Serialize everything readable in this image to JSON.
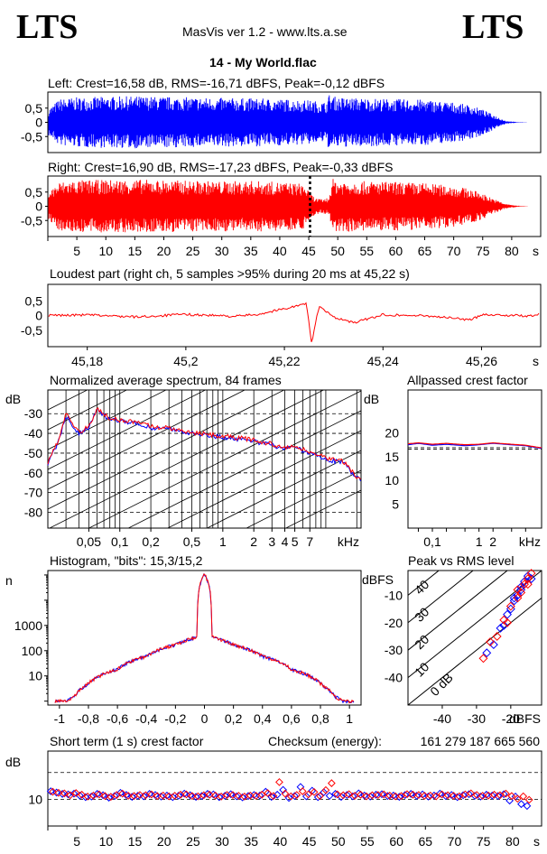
{
  "header": {
    "logo_left": "LTS",
    "logo_right": "LTS",
    "app_title": "MasVis ver 1.2 - www.lts.a.se",
    "track_title": "14 - My World.flac"
  },
  "colors": {
    "left": "#0000ff",
    "right": "#ff0000",
    "grid": "#000000"
  },
  "chart_data": [
    {
      "id": "left-waveform",
      "type": "area",
      "title": "Left: Crest=16,58 dB, RMS=-16,71 dBFS, Peak=-0,12 dBFS",
      "series": [
        {
          "name": "",
          "color": "#0000ff"
        }
      ],
      "x": [
        0,
        2,
        5,
        10,
        15,
        20,
        25,
        30,
        35,
        40,
        45,
        48,
        48.5,
        50,
        55,
        60,
        65,
        70,
        73,
        75,
        77,
        79,
        81,
        83
      ],
      "amplitude": [
        0.45,
        0.82,
        0.88,
        0.9,
        0.92,
        0.9,
        0.88,
        0.86,
        0.85,
        0.82,
        0.78,
        0.7,
        0.98,
        0.88,
        0.85,
        0.82,
        0.8,
        0.7,
        0.6,
        0.45,
        0.25,
        0.05,
        0.01,
        0
      ],
      "xlim": [
        0,
        85
      ],
      "ylim": [
        -1,
        1
      ],
      "yticks": [
        "0,5",
        "0",
        "-0,5"
      ]
    },
    {
      "id": "right-waveform",
      "type": "area",
      "title": "Right: Crest=16,90 dB, RMS=-17,23 dBFS, Peak=-0,33 dBFS",
      "series": [
        {
          "name": "",
          "color": "#ff0000"
        }
      ],
      "x": [
        0,
        2,
        5,
        10,
        15,
        20,
        25,
        30,
        35,
        40,
        44,
        46,
        47,
        48.5,
        49,
        50,
        55,
        60,
        65,
        70,
        73,
        75,
        77,
        79,
        81,
        83
      ],
      "amplitude": [
        0.5,
        0.85,
        0.92,
        0.93,
        0.94,
        0.92,
        0.9,
        0.88,
        0.9,
        0.85,
        0.8,
        0.3,
        0.25,
        0.3,
        0.98,
        0.9,
        0.88,
        0.86,
        0.82,
        0.72,
        0.6,
        0.45,
        0.25,
        0.08,
        0.02,
        0
      ],
      "marker_x": 45.22,
      "xlim": [
        0,
        85
      ],
      "ylim": [
        -1,
        1
      ],
      "yticks": [
        "0,5",
        "0",
        "-0,5"
      ],
      "xticks": [
        "5",
        "10",
        "15",
        "20",
        "25",
        "30",
        "35",
        "40",
        "45",
        "50",
        "55",
        "60",
        "65",
        "70",
        "75",
        "80",
        "s"
      ]
    },
    {
      "id": "loudest-part",
      "type": "line",
      "title": "Loudest part (right ch, 5 samples >95% during 20 ms at 45,22 s)",
      "series": [
        {
          "name": "",
          "color": "#ff0000"
        }
      ],
      "x": [
        45.172,
        45.18,
        45.19,
        45.2,
        45.21,
        45.215,
        45.2245,
        45.2255,
        45.227,
        45.23,
        45.234,
        45.24,
        45.25,
        45.258,
        45.26,
        45.27,
        45.272
      ],
      "y": [
        0.0,
        0.02,
        -0.05,
        0.04,
        -0.03,
        0.05,
        0.4,
        -0.95,
        0.3,
        -0.05,
        -0.25,
        0.03,
        -0.02,
        -0.15,
        0.04,
        -0.02,
        0.05
      ],
      "xlim": [
        45.172,
        45.272
      ],
      "ylim": [
        -1,
        1
      ],
      "yticks": [
        "0,5",
        "0",
        "-0,5"
      ],
      "xticks": [
        "45,18",
        "45,2",
        "45,22",
        "45,24",
        "45,26",
        "s"
      ]
    },
    {
      "id": "spectrum",
      "type": "line",
      "title": "Normalized average spectrum, 84 frames",
      "ylabel": "dB",
      "xlabel": "kHz",
      "series": [
        {
          "name": "",
          "color": "#0000ff"
        },
        {
          "name": "",
          "color": "#ff0000"
        }
      ],
      "x": [
        0.02,
        0.025,
        0.03,
        0.04,
        0.05,
        0.06,
        0.08,
        0.1,
        0.15,
        0.2,
        0.3,
        0.5,
        0.7,
        1,
        1.5,
        2,
        3,
        4,
        5,
        7,
        10,
        15,
        20
      ],
      "y": [
        -55,
        -45,
        -31,
        -40,
        -37,
        -28,
        -33,
        -34,
        -35,
        -37,
        -38,
        -40,
        -41,
        -42,
        -43,
        -44,
        -46,
        -48,
        -47,
        -50,
        -53,
        -55,
        -63
      ],
      "xlim": [
        0.02,
        22
      ],
      "ylim": [
        -88,
        -18
      ],
      "yticks": [
        "-30",
        "-40",
        "-50",
        "-60",
        "-70",
        "-80"
      ],
      "xticks": [
        "0,05",
        "0,1",
        "0,2",
        "0,5",
        "1",
        "2",
        "3",
        "4",
        "5",
        "7",
        "kHz"
      ]
    },
    {
      "id": "allpassed-crest",
      "type": "line",
      "title": "Allpassed crest factor",
      "ylabel": "dB",
      "xlabel": "kHz",
      "series": [
        {
          "name": "",
          "color": "#0000ff"
        },
        {
          "name": "",
          "color": "#ff0000"
        }
      ],
      "x": [
        0.03,
        0.05,
        0.1,
        0.2,
        0.5,
        1,
        2,
        5,
        10,
        20
      ],
      "y_left": [
        17.5,
        17.8,
        17.4,
        17.6,
        17.3,
        17.5,
        17.8,
        17.5,
        17.3,
        16.8
      ],
      "y_right": [
        17.7,
        17.9,
        17.6,
        17.8,
        17.5,
        17.6,
        17.9,
        17.6,
        17.4,
        16.9
      ],
      "reference_lines": [
        16.6,
        16.9
      ],
      "xlim": [
        0.03,
        22
      ],
      "ylim": [
        0,
        29
      ],
      "yticks": [
        "20",
        "15",
        "10",
        "5"
      ],
      "xticks": [
        "0,1",
        "1",
        "2",
        "kHz"
      ]
    },
    {
      "id": "histogram",
      "type": "line",
      "title": "Histogram, \"bits\": 15,3/15,2",
      "ylabel": "n",
      "series": [
        {
          "name": "",
          "color": "#0000ff"
        },
        {
          "name": "",
          "color": "#ff0000"
        }
      ],
      "x": [
        -1,
        -0.95,
        -0.9,
        -0.85,
        -0.8,
        -0.6,
        -0.4,
        -0.2,
        -0.05,
        0,
        0.05,
        0.2,
        0.4,
        0.6,
        0.8,
        0.85,
        0.9,
        0.95,
        1
      ],
      "y": [
        1,
        1,
        1.5,
        3,
        5,
        18,
        60,
        170,
        350,
        100000,
        350,
        170,
        60,
        18,
        5,
        3,
        1.5,
        1,
        1
      ],
      "ylim_log": [
        0.7,
        150000
      ],
      "yticks": [
        "1000",
        "100",
        "10"
      ],
      "xticks": [
        "-1",
        "-0,8",
        "-0,6",
        "-0,4",
        "-0,2",
        "0",
        "0,2",
        "0,4",
        "0,6",
        "0,8",
        "1"
      ]
    },
    {
      "id": "peak-vs-rms",
      "type": "scatter",
      "title": "Peak vs RMS level",
      "ylabel": "dBFS",
      "xlabel": "dBFS",
      "series": [
        {
          "name": "",
          "color": "#0000ff",
          "x": [
            -27,
            -25,
            -23,
            -22,
            -20,
            -19,
            -18,
            -17,
            -16,
            -15,
            -14,
            -17,
            -19,
            -21
          ],
          "y": [
            -31,
            -28,
            -22,
            -21,
            -15,
            -12,
            -10,
            -8,
            -5,
            -3,
            -4,
            -7,
            -11,
            -17
          ]
        },
        {
          "name": "",
          "color": "#ff0000",
          "x": [
            -28,
            -26,
            -24,
            -21,
            -20,
            -18,
            -17,
            -16,
            -15,
            -14,
            -15,
            -18,
            -22
          ],
          "y": [
            -33,
            -27,
            -25,
            -20,
            -14,
            -11,
            -9,
            -6,
            -4,
            -2,
            -6,
            -8,
            -19
          ]
        }
      ],
      "diagonal_labels": [
        "40",
        "30",
        "20",
        "10",
        "0 dB"
      ],
      "xlim": [
        -50,
        -11
      ],
      "ylim": [
        -50,
        -1
      ],
      "yticks": [
        "-10",
        "-20",
        "-30",
        "-40"
      ],
      "xticks": [
        "-40",
        "-30",
        "-20",
        "dBFS"
      ]
    },
    {
      "id": "short-term-crest",
      "type": "scatter",
      "title": "Short term (1 s) crest factor",
      "checksum_label": "Checksum (energy):",
      "checksum_value": "161 279 187 665 560",
      "ylabel": "dB",
      "series": [
        {
          "name": "",
          "color": "#0000ff",
          "y": [
            13,
            12.5,
            12,
            11.8,
            12.1,
            11.4,
            10.8,
            11,
            12,
            11.5,
            10.6,
            11.2,
            12.4,
            11.6,
            10.9,
            11.3,
            11.1,
            12,
            11.6,
            11,
            11.4,
            10.8,
            11.3,
            12.1,
            11.5,
            10.9,
            11.2,
            12,
            11.8,
            10.8,
            11.3,
            11.9,
            11.1,
            10.7,
            11.2,
            11.6,
            11.4,
            12.8,
            10.9,
            11.7,
            13.5,
            10.5,
            11.2,
            14.6,
            11.1,
            13.2,
            10.8,
            12.6,
            11.3,
            12,
            10.9,
            11.6,
            11.1,
            12.2,
            11.4,
            11,
            11.7,
            11.9,
            11.2,
            11.4,
            10.9,
            11.6,
            12,
            11.3,
            11.8,
            11,
            11.4,
            12.1,
            11.2,
            11.6,
            10.8,
            11.5,
            11.9,
            11.3,
            11,
            11.7,
            11.4,
            11.2,
            11.9,
            9.5,
            11,
            8.2,
            7.5
          ]
        },
        {
          "name": "",
          "color": "#ff0000",
          "y": [
            12.8,
            12.4,
            12.2,
            11.5,
            12.3,
            11.7,
            11,
            11.4,
            11.8,
            11.2,
            10.9,
            11.6,
            12.1,
            11.3,
            11.2,
            11.6,
            11.5,
            11.8,
            11.2,
            11.4,
            11.1,
            11.3,
            11.7,
            11.8,
            11.2,
            11.1,
            11.5,
            11.7,
            11.4,
            11,
            11.6,
            11.6,
            11.3,
            11,
            11.4,
            11.3,
            11.7,
            12.3,
            11.2,
            16.4,
            12.1,
            11.1,
            11.6,
            13,
            11.8,
            12.7,
            11.2,
            13.4,
            16,
            11.8,
            11.5,
            11.9,
            11.3,
            11.7,
            11.1,
            11.5,
            11.6,
            11.8,
            11.4,
            11.1,
            11.2,
            11.9,
            11.7,
            11.6,
            11.3,
            11.4,
            11.1,
            11.8,
            11.5,
            11.3,
            11.1,
            11.8,
            12.2,
            11.6,
            11.3,
            11.4,
            11.7,
            11.5,
            12.1,
            11.2,
            10.2,
            11.1,
            9.8
          ]
        }
      ],
      "reference_lines": [
        10,
        20
      ],
      "xlim": [
        0,
        85
      ],
      "ylim": [
        0,
        28
      ],
      "yticks": [
        "10"
      ],
      "xticks": [
        "5",
        "10",
        "15",
        "20",
        "25",
        "30",
        "35",
        "40",
        "45",
        "50",
        "55",
        "60",
        "65",
        "70",
        "75",
        "80",
        "s"
      ]
    }
  ]
}
